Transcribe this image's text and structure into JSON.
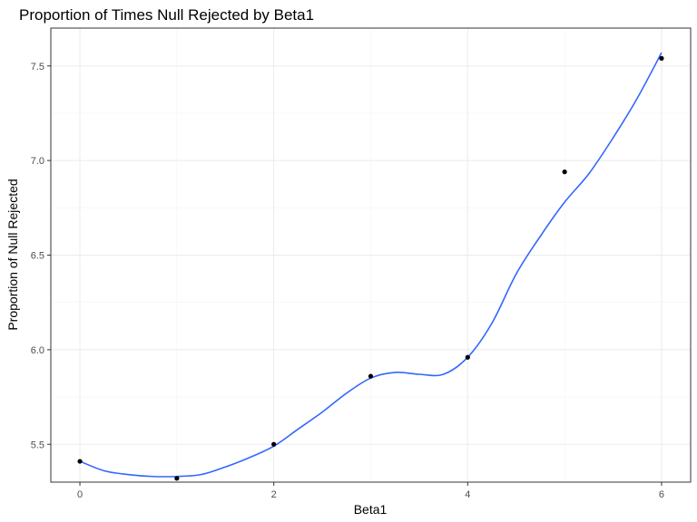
{
  "chart_data": {
    "type": "scatter",
    "title": "Proportion of Times Null Rejected by Beta1",
    "xlabel": "Beta1",
    "ylabel": "Proportion of Null Rejected",
    "xlim": [
      -0.3,
      6.3
    ],
    "ylim": [
      5.3,
      7.7
    ],
    "x_ticks": [
      0,
      2,
      4,
      6
    ],
    "y_ticks": [
      5.5,
      6.0,
      6.5,
      7.0,
      7.5
    ],
    "x_tick_labels": [
      "0",
      "2",
      "4",
      "6"
    ],
    "y_tick_labels": [
      "5.5",
      "6.0",
      "6.5",
      "7.0",
      "7.5"
    ],
    "grid": true,
    "points": [
      {
        "x": 0,
        "y": 5.41
      },
      {
        "x": 1,
        "y": 5.32
      },
      {
        "x": 2,
        "y": 5.5
      },
      {
        "x": 3,
        "y": 5.86
      },
      {
        "x": 4,
        "y": 5.96
      },
      {
        "x": 5,
        "y": 6.94
      },
      {
        "x": 6,
        "y": 7.54
      }
    ],
    "trend_line": {
      "method": "smooth",
      "color": "#3366ff",
      "x": [
        0,
        0.25,
        0.5,
        0.75,
        1,
        1.25,
        1.5,
        1.75,
        2,
        2.25,
        2.5,
        2.75,
        3,
        3.25,
        3.5,
        3.75,
        4,
        4.25,
        4.5,
        4.75,
        5,
        5.25,
        5.5,
        5.75,
        6
      ],
      "y": [
        5.41,
        5.36,
        5.34,
        5.33,
        5.33,
        5.34,
        5.38,
        5.43,
        5.49,
        5.58,
        5.67,
        5.77,
        5.85,
        5.88,
        5.87,
        5.87,
        5.96,
        6.14,
        6.4,
        6.6,
        6.78,
        6.93,
        7.12,
        7.33,
        7.57
      ]
    }
  }
}
